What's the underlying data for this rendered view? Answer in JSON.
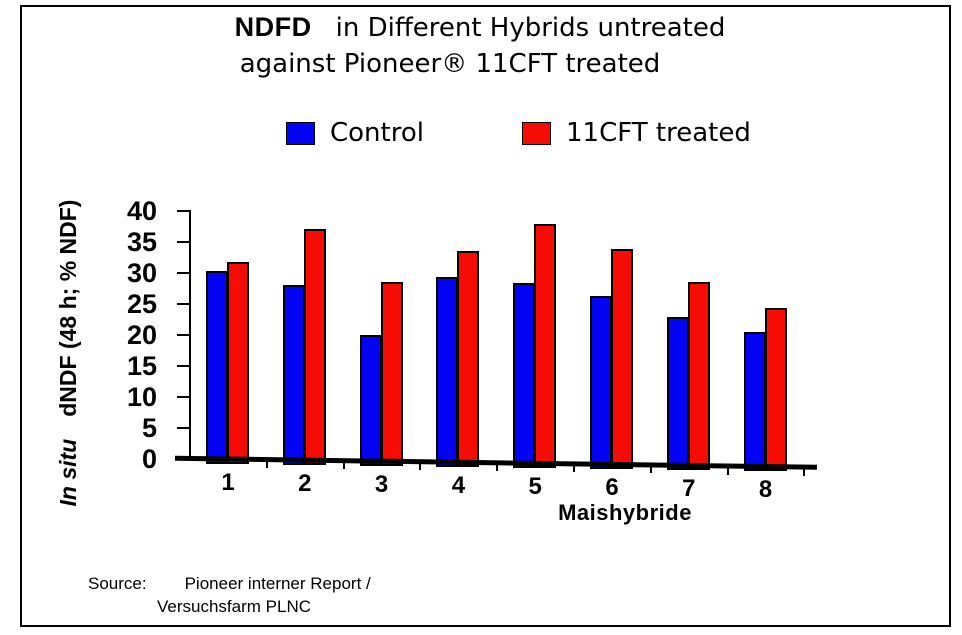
{
  "title": {
    "prefix": "NDFD",
    "line1_rest": "in Different Hybrids untreated",
    "line2": "against Pioneer® 11CFT treated"
  },
  "legend": [
    {
      "label": "Control",
      "color": "#0404F5"
    },
    {
      "label": "11CFT treated",
      "color": "#F50D05"
    }
  ],
  "axes": {
    "y_label_italic": "In situ",
    "y_label_rest": "dNDF (48 h; % NDF)",
    "x_label": "Maishybride",
    "y_ticks": [
      40,
      35,
      30,
      25,
      20,
      15,
      10,
      5,
      0
    ]
  },
  "source": {
    "label": "Source:",
    "line1": "Pioneer interner Report /",
    "line2": "Versuchsfarm PLNC"
  },
  "chart_data": {
    "type": "bar",
    "title": "NDFD in Different Hybrids untreated against Pioneer® 11CFT treated",
    "categories": [
      "1",
      "2",
      "3",
      "4",
      "5",
      "6",
      "7",
      "8"
    ],
    "series": [
      {
        "name": "Control",
        "color": "#0404F5",
        "values": [
          30.3,
          28.0,
          20.0,
          29.3,
          28.4,
          26.2,
          22.8,
          20.4
        ]
      },
      {
        "name": "11CFT treated",
        "color": "#F50D05",
        "values": [
          31.7,
          37.1,
          28.5,
          33.5,
          37.8,
          33.9,
          28.5,
          24.3
        ]
      }
    ],
    "xlabel": "Maishybride",
    "ylabel": "In situ dNDF (48 h; % NDF)",
    "ylim": [
      0,
      40
    ],
    "y_tick_step": 5,
    "grid": false,
    "legend_position": "top",
    "note": "x-axis baseline drawn with slight downward tilt to the right"
  }
}
